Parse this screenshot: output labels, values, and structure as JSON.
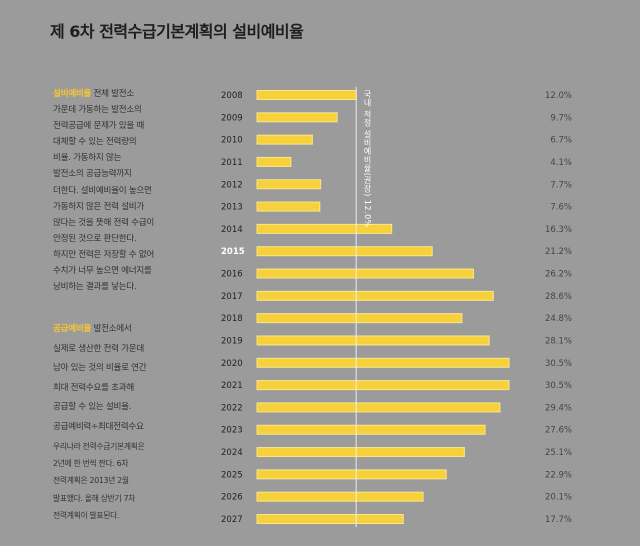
{
  "title": "제 6차 전력수급기본계획의 설비예비율",
  "text": {
    "p1_term": "설비예비율",
    "p1_lines": [
      " 전체 발전소",
      "가운데 가동하는 발전소의",
      "전력공급에 문제가 있을 때",
      "대체할 수 있는 전력량의",
      "비율. 가동하지 않는",
      "발전소의 공급능력까지",
      "더한다. 설비예비율이 높으면",
      "가동하지 않은 전력 설비가",
      "많다는 것을 뜻해 전력 수급이",
      "안정된 것으로 판단한다.",
      "하지만 전력은 저장할 수 없어",
      "수치가 너무 높으면 에너지를",
      "낭비하는 결과를 낳는다."
    ],
    "p2_term": "공급예비율",
    "p2_lines": [
      " 발전소에서",
      "실제로 생산한 전력 가운데",
      "남아 있는 것의 비율로 연간",
      "최대 전력수요를 초과해",
      "공급할 수 있는 설비율.",
      "공급예비력÷최대전력수요"
    ],
    "p3_lines": [
      "우리나라 전력수급기본계획은",
      "2년에 한 번씩 짠다. 6차",
      "전력계획은 2013년 2월",
      "발표했다. 올해 상반기 7차",
      "전력계획이 발표된다."
    ]
  },
  "chart_data": {
    "type": "bar",
    "orientation": "horizontal",
    "categories": [
      "2008",
      "2009",
      "2010",
      "2011",
      "2012",
      "2013",
      "2014",
      "2015",
      "2016",
      "2017",
      "2018",
      "2019",
      "2020",
      "2021",
      "2022",
      "2023",
      "2024",
      "2025",
      "2026",
      "2027"
    ],
    "values": [
      12.0,
      9.7,
      6.7,
      4.1,
      7.7,
      7.6,
      16.3,
      21.2,
      26.2,
      28.6,
      24.8,
      28.1,
      30.5,
      30.5,
      29.4,
      27.6,
      25.1,
      22.9,
      20.1,
      17.7
    ],
    "value_labels": [
      "12.0%",
      "9.7%",
      "6.7%",
      "4.1%",
      "7.7%",
      "7.6%",
      "16.3%",
      "21.2%",
      "26.2%",
      "28.6%",
      "24.8%",
      "28.1%",
      "30.5%",
      "30.5%",
      "29.4%",
      "27.6%",
      "25.1%",
      "22.9%",
      "20.1%",
      "17.7%"
    ],
    "highlight_category": "2015",
    "reference_line": {
      "value": 12.0,
      "label": "국내 적정 설비예비율(권장) 12.0%"
    },
    "xlim": [
      0,
      31
    ],
    "bar_color": "#f7d13a",
    "highlight_label_color": "#ffffff",
    "background": "#9b9b9b",
    "grid": false
  }
}
